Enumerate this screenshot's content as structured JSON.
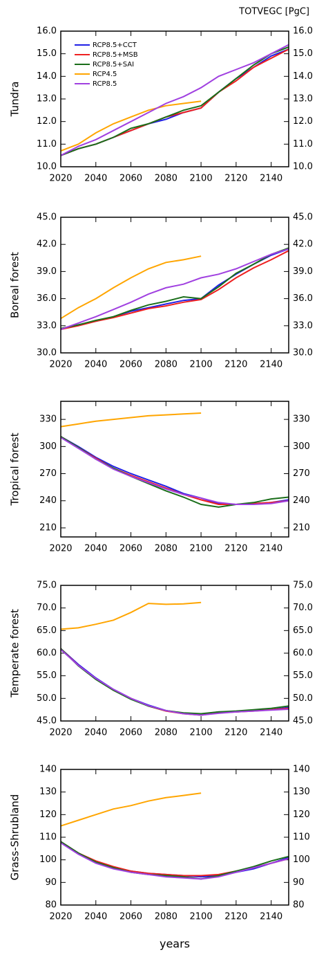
{
  "chart_data": [
    {
      "type": "line",
      "title": "TOTVEGC [PgC]",
      "ylabel": "Tundra",
      "legend": "upper left",
      "x": [
        2020,
        2030,
        2040,
        2050,
        2060,
        2070,
        2080,
        2090,
        2100,
        2110,
        2120,
        2130,
        2140,
        2150
      ],
      "xlim": [
        2020,
        2150
      ],
      "xticks": [
        2020,
        2040,
        2060,
        2080,
        2100,
        2120,
        2140
      ],
      "ylim": [
        10,
        16
      ],
      "yticks": [
        {
          "value": 10,
          "label": "10.0"
        },
        {
          "value": 11,
          "label": "11.0"
        },
        {
          "value": 12,
          "label": "12.0"
        },
        {
          "value": 13,
          "label": "13.0"
        },
        {
          "value": 14,
          "label": "14.0"
        },
        {
          "value": 15,
          "label": "15.0"
        },
        {
          "value": 16,
          "label": "16.0"
        }
      ],
      "series": [
        {
          "name": "RCP8.5+CCT",
          "color": "#1f1fe6",
          "values": [
            10.5,
            10.8,
            11.0,
            11.3,
            11.6,
            11.9,
            12.1,
            12.4,
            12.6,
            13.3,
            13.9,
            14.4,
            14.9,
            15.2
          ]
        },
        {
          "name": "RCP8.5+MSB",
          "color": "#ee2020",
          "values": [
            10.5,
            10.8,
            11.0,
            11.3,
            11.6,
            11.9,
            12.2,
            12.4,
            12.6,
            13.3,
            13.8,
            14.4,
            14.8,
            15.2
          ]
        },
        {
          "name": "RCP8.5+SAI",
          "color": "#1a6e1a",
          "values": [
            10.5,
            10.8,
            11.0,
            11.3,
            11.7,
            11.9,
            12.2,
            12.5,
            12.7,
            13.3,
            13.9,
            14.5,
            15.0,
            15.3
          ]
        },
        {
          "name": "RCP4.5",
          "color": "#ffa500",
          "values": [
            10.7,
            11.0,
            11.5,
            11.9,
            12.2,
            12.5,
            12.7,
            12.8,
            12.9,
            null,
            null,
            null,
            null,
            null
          ]
        },
        {
          "name": "RCP8.5",
          "color": "#a040e0",
          "values": [
            10.5,
            10.9,
            11.2,
            11.6,
            12.0,
            12.4,
            12.8,
            13.1,
            13.5,
            14.0,
            14.3,
            14.6,
            15.0,
            15.4
          ]
        }
      ]
    },
    {
      "type": "line",
      "ylabel": "Boreal forest",
      "x": [
        2020,
        2030,
        2040,
        2050,
        2060,
        2070,
        2080,
        2090,
        2100,
        2110,
        2120,
        2130,
        2140,
        2150
      ],
      "xlim": [
        2020,
        2150
      ],
      "xticks": [
        2020,
        2040,
        2060,
        2080,
        2100,
        2120,
        2140
      ],
      "ylim": [
        30,
        45
      ],
      "yticks": [
        {
          "value": 30,
          "label": "30.0"
        },
        {
          "value": 33,
          "label": "33.0"
        },
        {
          "value": 36,
          "label": "36.0"
        },
        {
          "value": 39,
          "label": "39.0"
        },
        {
          "value": 42,
          "label": "42.0"
        },
        {
          "value": 45,
          "label": "45.0"
        }
      ],
      "series": [
        {
          "color": "#1f1fe6",
          "values": [
            32.6,
            33.1,
            33.5,
            34.0,
            34.6,
            35.0,
            35.4,
            35.8,
            36.0,
            37.5,
            38.7,
            39.8,
            40.8,
            41.5
          ]
        },
        {
          "color": "#ee2020",
          "values": [
            32.6,
            33.0,
            33.5,
            33.9,
            34.4,
            34.9,
            35.2,
            35.6,
            35.9,
            37.0,
            38.3,
            39.4,
            40.3,
            41.3
          ]
        },
        {
          "color": "#1a6e1a",
          "values": [
            32.7,
            33.1,
            33.6,
            34.0,
            34.7,
            35.3,
            35.7,
            36.2,
            36.0,
            37.3,
            38.8,
            39.8,
            40.9,
            41.6
          ]
        },
        {
          "color": "#ffa500",
          "values": [
            33.8,
            35.0,
            36.0,
            37.2,
            38.3,
            39.3,
            40.0,
            40.3,
            40.7,
            null,
            null,
            null,
            null,
            null
          ]
        },
        {
          "color": "#a040e0",
          "values": [
            32.6,
            33.3,
            34.0,
            34.8,
            35.6,
            36.5,
            37.2,
            37.6,
            38.3,
            38.7,
            39.3,
            40.1,
            40.9,
            41.5
          ]
        }
      ]
    },
    {
      "type": "line",
      "ylabel": "Tropical forest",
      "x": [
        2020,
        2030,
        2040,
        2050,
        2060,
        2070,
        2080,
        2090,
        2100,
        2110,
        2120,
        2130,
        2140,
        2150
      ],
      "xlim": [
        2020,
        2150
      ],
      "xticks": [
        2020,
        2040,
        2060,
        2080,
        2100,
        2120,
        2140
      ],
      "ylim": [
        200,
        350
      ],
      "yticks": [
        210,
        240,
        270,
        300,
        330
      ],
      "series": [
        {
          "color": "#1f1fe6",
          "values": [
            311,
            300,
            288,
            278,
            270,
            263,
            256,
            248,
            243,
            237,
            236,
            237,
            238,
            241
          ]
        },
        {
          "color": "#ee2020",
          "values": [
            311,
            299,
            287,
            276,
            268,
            261,
            254,
            247,
            241,
            236,
            236,
            237,
            238,
            240
          ]
        },
        {
          "color": "#1a6e1a",
          "values": [
            311,
            299,
            286,
            276,
            267,
            259,
            251,
            244,
            236,
            233,
            236,
            238,
            242,
            244
          ]
        },
        {
          "color": "#ffa500",
          "values": [
            322,
            325,
            328,
            330,
            332,
            334,
            335,
            336,
            337,
            null,
            null,
            null,
            null,
            null
          ]
        },
        {
          "color": "#a040e0",
          "values": [
            310,
            298,
            286,
            275,
            267,
            260,
            253,
            247,
            243,
            238,
            236,
            236,
            237,
            240
          ]
        }
      ]
    },
    {
      "type": "line",
      "ylabel": "Temperate forest",
      "x": [
        2020,
        2030,
        2040,
        2050,
        2060,
        2070,
        2080,
        2090,
        2100,
        2110,
        2120,
        2130,
        2140,
        2150
      ],
      "xlim": [
        2020,
        2150
      ],
      "xticks": [
        2020,
        2040,
        2060,
        2080,
        2100,
        2120,
        2140
      ],
      "ylim": [
        45,
        75
      ],
      "yticks": [
        {
          "value": 45,
          "label": "45.0"
        },
        {
          "value": 50,
          "label": "50.0"
        },
        {
          "value": 55,
          "label": "55.0"
        },
        {
          "value": 60,
          "label": "60.0"
        },
        {
          "value": 65,
          "label": "65.0"
        },
        {
          "value": 70,
          "label": "70.0"
        },
        {
          "value": 75,
          "label": "75.0"
        }
      ],
      "series": [
        {
          "color": "#1f1fe6",
          "values": [
            61,
            57.5,
            54.5,
            52,
            50,
            48.5,
            47.3,
            46.7,
            46.5,
            47,
            47,
            47.3,
            47.5,
            48
          ]
        },
        {
          "color": "#ee2020",
          "values": [
            61,
            57.3,
            54.3,
            51.8,
            50,
            48.3,
            47.2,
            46.6,
            46.3,
            46.8,
            47,
            47.2,
            47.5,
            47.8
          ]
        },
        {
          "color": "#1a6e1a",
          "values": [
            61,
            57.2,
            54.2,
            51.8,
            49.8,
            48.3,
            47.3,
            46.8,
            46.6,
            47,
            47.2,
            47.5,
            47.8,
            48.3
          ]
        },
        {
          "color": "#ffa500",
          "values": [
            65.3,
            65.6,
            66.4,
            67.3,
            69,
            71,
            70.8,
            70.9,
            71.2,
            null,
            null,
            null,
            null,
            null
          ]
        },
        {
          "color": "#a040e0",
          "values": [
            60.8,
            57.3,
            54.4,
            52,
            50,
            48.4,
            47.3,
            46.6,
            46.3,
            46.7,
            47,
            47.2,
            47.4,
            47.6
          ]
        }
      ]
    },
    {
      "type": "line",
      "ylabel": "Grass-Shrubland",
      "xlabel": "years",
      "x": [
        2020,
        2030,
        2040,
        2050,
        2060,
        2070,
        2080,
        2090,
        2100,
        2110,
        2120,
        2130,
        2140,
        2150
      ],
      "xlim": [
        2020,
        2150
      ],
      "xticks": [
        2020,
        2040,
        2060,
        2080,
        2100,
        2120,
        2140
      ],
      "ylim": [
        80,
        140
      ],
      "yticks": [
        80,
        90,
        100,
        110,
        120,
        130,
        140
      ],
      "series": [
        {
          "color": "#1f1fe6",
          "values": [
            108,
            103,
            99,
            96.5,
            95,
            94,
            93.5,
            93,
            92.5,
            93,
            94.5,
            96,
            98.5,
            101
          ]
        },
        {
          "color": "#ee2020",
          "values": [
            108,
            103,
            99.5,
            97,
            95,
            94,
            93.5,
            93,
            93,
            93.5,
            95,
            96.5,
            98.5,
            100.5
          ]
        },
        {
          "color": "#1a6e1a",
          "values": [
            108,
            103,
            99,
            96.5,
            94.5,
            93.5,
            93,
            92.5,
            91.5,
            93,
            95,
            97,
            99.5,
            101.5
          ]
        },
        {
          "color": "#ffa500",
          "values": [
            115,
            117.5,
            120,
            122.5,
            124,
            126,
            127.5,
            128.5,
            129.5,
            null,
            null,
            null,
            null,
            null
          ]
        },
        {
          "color": "#a040e0",
          "values": [
            107.5,
            102.5,
            98.5,
            96,
            94.5,
            93.5,
            92.5,
            92,
            91.5,
            92.5,
            94.5,
            96.5,
            98.5,
            100.5
          ]
        }
      ]
    }
  ]
}
